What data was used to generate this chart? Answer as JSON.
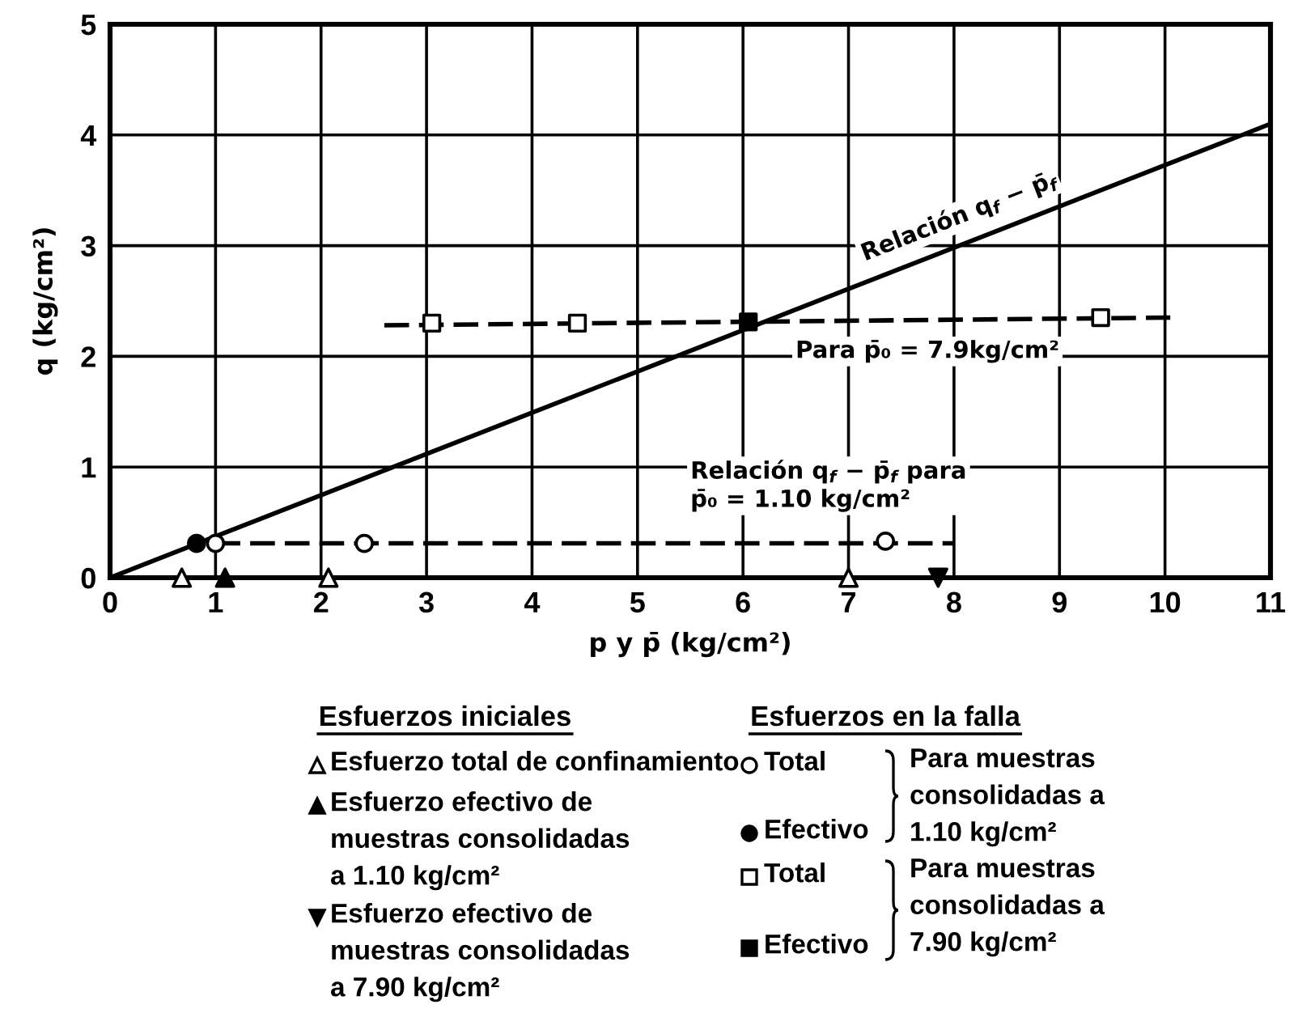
{
  "chart_data": {
    "type": "scatter",
    "xlabel": "p y p̄ (kg/cm²)",
    "ylabel": "q (kg/cm²)",
    "xlim": [
      0,
      11
    ],
    "xticks": [
      0,
      1,
      2,
      3,
      4,
      5,
      6,
      7,
      8,
      9,
      10,
      11
    ],
    "ylim": [
      0,
      5
    ],
    "yticks": [
      0,
      1,
      2,
      3,
      4,
      5
    ],
    "grid": true,
    "legend": "bottom",
    "annotations": [
      "Esfuerzos iniciales",
      "Esfuerzos en la falla",
      "Para muestras\nconsolidadas a\n1.10 kg/cm²",
      "Para muestras\nconsolidadas a\n7.90 kg/cm²"
    ],
    "series": [
      {
        "name": "Relación q$_{f}$ − p̄$_{f}$",
        "type": "line",
        "x": [
          0,
          11
        ],
        "values": [
          0,
          4.1
        ],
        "color": "#000000",
        "line_style": "solid",
        "marker": "none"
      },
      {
        "name": "Para p̄₀ = 7.9kg/cm²",
        "type": "line",
        "x": [
          2.6,
          10.05
        ],
        "values": [
          2.28,
          2.35
        ],
        "color": "#000000",
        "line_style": "dashed",
        "marker": "none"
      },
      {
        "name": "Relación q$_{f}$ − p̄$_{f}$ para\np̄₀ = 1.10 kg/cm²",
        "type": "line",
        "x": [
          1.0,
          8.0
        ],
        "values": [
          0.31,
          0.31
        ],
        "color": "#000000",
        "line_style": "dashed",
        "marker": "none"
      },
      {
        "name": "Esfuerzo total de confinamiento",
        "x": [
          0.68,
          2.07,
          7.0
        ],
        "values": [
          0,
          0,
          0
        ],
        "color": "#ffffff",
        "marker": "triangle"
      },
      {
        "name": "Esfuerzo efectivo de\nmuestras consolidadas\na 1.10 kg/cm²",
        "x": [
          1.09
        ],
        "values": [
          0
        ],
        "color": "#000000",
        "marker": "triangle"
      },
      {
        "name": "Esfuerzo efectivo de\nmuestras consolidadas\na 7.90 kg/cm²",
        "x": [
          7.85
        ],
        "values": [
          0
        ],
        "color": "#000000",
        "marker": "triangle_down"
      },
      {
        "name": "Total",
        "x": [
          1.0,
          2.41,
          7.35
        ],
        "values": [
          0.31,
          0.31,
          0.33
        ],
        "color": "#ffffff",
        "marker": "circle"
      },
      {
        "name": "Efectivo",
        "x": [
          0.82
        ],
        "values": [
          0.31
        ],
        "color": "#000000",
        "marker": "circle"
      },
      {
        "name": "Total",
        "x": [
          3.05,
          4.43,
          9.39
        ],
        "values": [
          2.3,
          2.3,
          2.35
        ],
        "color": "#ffffff",
        "marker": "square"
      },
      {
        "name": "Efectivo",
        "x": [
          6.05
        ],
        "values": [
          2.31
        ],
        "color": "#000000",
        "marker": "square"
      }
    ]
  }
}
